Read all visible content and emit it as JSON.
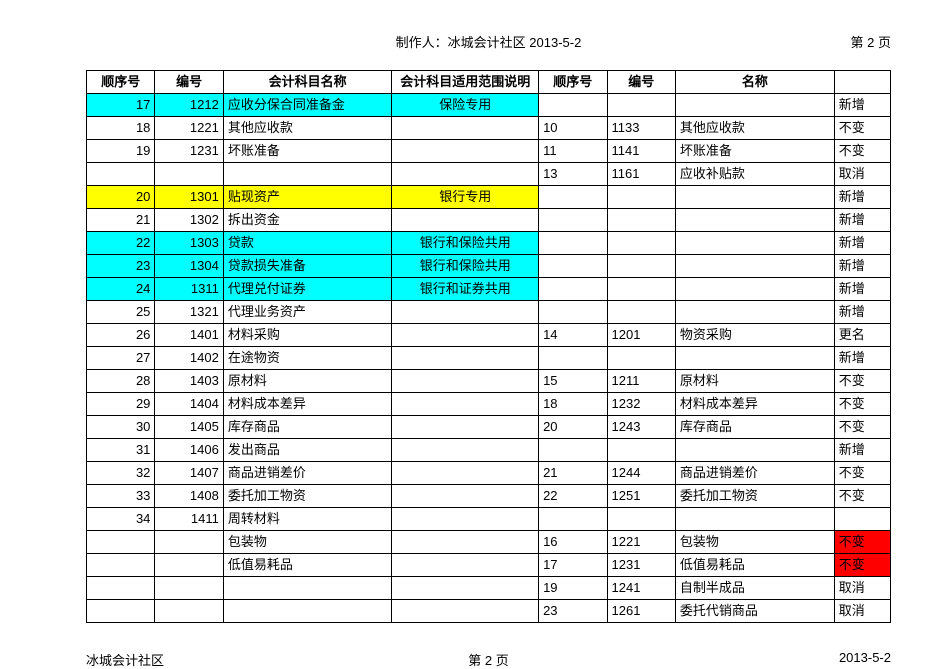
{
  "header": {
    "center": "制作人：冰城会计社区 2013-5-2",
    "right": "第 2 页"
  },
  "footer": {
    "left": "冰城会计社区",
    "center": "第 2 页",
    "right": "2013-5-2"
  },
  "columns": {
    "seq1": "顺序号",
    "code1": "编号",
    "name1": "会计科目名称",
    "scope": "会计科目适用范围说明",
    "seq2": "顺序号",
    "code2": "编号",
    "name2": "名称",
    "status": ""
  },
  "colors": {
    "cyan": "#00ffff",
    "yellow": "#ffff00",
    "red": "#ff0000",
    "white": "#ffffff",
    "black": "#000000"
  },
  "rows": [
    {
      "seq1": "17",
      "code1": "1212",
      "name1": "应收分保合同准备金",
      "scope": "保险专用",
      "hl_left": "cyan",
      "seq2": "",
      "code2": "",
      "name2": "",
      "status": "新增",
      "hl_status": ""
    },
    {
      "seq1": "18",
      "code1": "1221",
      "name1": "其他应收款",
      "scope": "",
      "hl_left": "",
      "seq2": "10",
      "code2": "1133",
      "name2": "其他应收款",
      "status": "不变",
      "hl_status": ""
    },
    {
      "seq1": "19",
      "code1": "1231",
      "name1": "坏账准备",
      "scope": "",
      "hl_left": "",
      "seq2": "11",
      "code2": "1141",
      "name2": "坏账准备",
      "status": "不变",
      "hl_status": ""
    },
    {
      "seq1": "",
      "code1": "",
      "name1": "",
      "scope": "",
      "hl_left": "",
      "seq2": "13",
      "code2": "1161",
      "name2": "应收补贴款",
      "status": "取消",
      "hl_status": ""
    },
    {
      "seq1": "20",
      "code1": "1301",
      "name1": "贴现资产",
      "scope": "银行专用",
      "hl_left": "yellow",
      "seq2": "",
      "code2": "",
      "name2": "",
      "status": "新增",
      "hl_status": ""
    },
    {
      "seq1": "21",
      "code1": "1302",
      "name1": "拆出资金",
      "scope": "",
      "hl_left": "",
      "seq2": "",
      "code2": "",
      "name2": "",
      "status": "新增",
      "hl_status": ""
    },
    {
      "seq1": "22",
      "code1": "1303",
      "name1": "贷款",
      "scope": "银行和保险共用",
      "hl_left": "cyan",
      "seq2": "",
      "code2": "",
      "name2": "",
      "status": "新增",
      "hl_status": ""
    },
    {
      "seq1": "23",
      "code1": "1304",
      "name1": "贷款损失准备",
      "scope": "银行和保险共用",
      "hl_left": "cyan",
      "seq2": "",
      "code2": "",
      "name2": "",
      "status": "新增",
      "hl_status": ""
    },
    {
      "seq1": "24",
      "code1": "1311",
      "name1": "代理兑付证券",
      "scope": "银行和证券共用",
      "hl_left": "cyan",
      "seq2": "",
      "code2": "",
      "name2": "",
      "status": "新增",
      "hl_status": ""
    },
    {
      "seq1": "25",
      "code1": "1321",
      "name1": "代理业务资产",
      "scope": "",
      "hl_left": "",
      "seq2": "",
      "code2": "",
      "name2": "",
      "status": "新增",
      "hl_status": ""
    },
    {
      "seq1": "26",
      "code1": "1401",
      "name1": "材料采购",
      "scope": "",
      "hl_left": "",
      "seq2": "14",
      "code2": "1201",
      "name2": "物资采购",
      "status": "更名",
      "hl_status": ""
    },
    {
      "seq1": "27",
      "code1": "1402",
      "name1": "在途物资",
      "scope": "",
      "hl_left": "",
      "seq2": "",
      "code2": "",
      "name2": "",
      "status": "新增",
      "hl_status": ""
    },
    {
      "seq1": "28",
      "code1": "1403",
      "name1": "原材料",
      "scope": "",
      "hl_left": "",
      "seq2": "15",
      "code2": "1211",
      "name2": "原材料",
      "status": "不变",
      "hl_status": ""
    },
    {
      "seq1": "29",
      "code1": "1404",
      "name1": "材料成本差异",
      "scope": "",
      "hl_left": "",
      "seq2": "18",
      "code2": "1232",
      "name2": "材料成本差异",
      "status": "不变",
      "hl_status": ""
    },
    {
      "seq1": "30",
      "code1": "1405",
      "name1": "库存商品",
      "scope": "",
      "hl_left": "",
      "seq2": "20",
      "code2": "1243",
      "name2": "库存商品",
      "status": "不变",
      "hl_status": ""
    },
    {
      "seq1": "31",
      "code1": "1406",
      "name1": "发出商品",
      "scope": "",
      "hl_left": "",
      "seq2": "",
      "code2": "",
      "name2": "",
      "status": "新增",
      "hl_status": ""
    },
    {
      "seq1": "32",
      "code1": "1407",
      "name1": "商品进销差价",
      "scope": "",
      "hl_left": "",
      "seq2": "21",
      "code2": "1244",
      "name2": "商品进销差价",
      "status": "不变",
      "hl_status": ""
    },
    {
      "seq1": "33",
      "code1": "1408",
      "name1": "委托加工物资",
      "scope": "",
      "hl_left": "",
      "seq2": "22",
      "code2": "1251",
      "name2": "委托加工物资",
      "status": "不变",
      "hl_status": ""
    },
    {
      "seq1": "34",
      "code1": "1411",
      "name1": "周转材料",
      "scope": "",
      "hl_left": "",
      "seq2": "",
      "code2": "",
      "name2": "",
      "status": "",
      "hl_status": ""
    },
    {
      "seq1": "",
      "code1": "",
      "name1": "包装物",
      "scope": "",
      "hl_left": "",
      "seq2": "16",
      "code2": "1221",
      "name2": "包装物",
      "status": "不变",
      "hl_status": "red"
    },
    {
      "seq1": "",
      "code1": "",
      "name1": "低值易耗品",
      "scope": "",
      "hl_left": "",
      "seq2": "17",
      "code2": "1231",
      "name2": "低值易耗品",
      "status": "不变",
      "hl_status": "red"
    },
    {
      "seq1": "",
      "code1": "",
      "name1": "",
      "scope": "",
      "hl_left": "",
      "seq2": "19",
      "code2": "1241",
      "name2": "自制半成品",
      "status": "取消",
      "hl_status": ""
    },
    {
      "seq1": "",
      "code1": "",
      "name1": "",
      "scope": "",
      "hl_left": "",
      "seq2": "23",
      "code2": "1261",
      "name2": "委托代销商品",
      "status": "取消",
      "hl_status": ""
    }
  ]
}
